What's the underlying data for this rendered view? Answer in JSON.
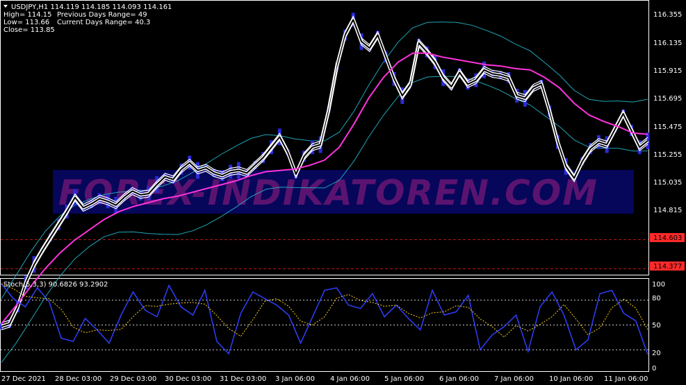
{
  "symbol_line": "USDJPY,H1  114.119 114.185 114.093 114.161",
  "info": {
    "high": "High= 114.15",
    "low": "Low= 113.66",
    "close": "Close= 113.85",
    "prev_range": "Previous Days Range= 49",
    "curr_range": "Current Days Range= 40.3"
  },
  "watermark": "FOREX-INDIKATOREN.COM",
  "price_axis": [
    "116.355",
    "116.135",
    "115.915",
    "115.695",
    "115.475",
    "115.255",
    "115.035",
    "114.815"
  ],
  "level_tags": [
    {
      "label": "114.603",
      "color": "#ff2a2a"
    },
    {
      "label": "114.377",
      "color": "#ff2a2a"
    }
  ],
  "stoch_label": "Stoch(5,3,3) 90.6826 93.2902",
  "stoch_axis": [
    "100",
    "80",
    "50",
    "20",
    "0"
  ],
  "time_axis": [
    "27 Dec 2021",
    "28 Dec 03:00",
    "29 Dec 03:00",
    "30 Dec 03:00",
    "31 Dec 03:00",
    "3 Jan 06:00",
    "4 Jan 06:00",
    "5 Jan 06:00",
    "6 Jan 06:00",
    "7 Jan 06:00",
    "10 Jan 06:00",
    "11 Jan 06:00"
  ],
  "colors": {
    "price_line": "#ffffff",
    "ma": "#ff33dd",
    "bands": "#1fa6b8",
    "stoch_main": "#2f3fff",
    "stoch_signal": "#ffd21a",
    "level": "#c11a1a",
    "watermark_box": "#06065a"
  },
  "chart_data": {
    "type": "line",
    "title": "USDJPY,H1",
    "series": [
      {
        "values": [
          113.93,
          113.95,
          114.08,
          114.27,
          114.41,
          114.52,
          114.62,
          114.72,
          114.82,
          114.93,
          114.85,
          114.88,
          114.92,
          114.9,
          114.87,
          114.93,
          114.98,
          114.95,
          114.96,
          115.03,
          115.09,
          115.07,
          115.15,
          115.2,
          115.14,
          115.16,
          115.12,
          115.1,
          115.13,
          115.14,
          115.12,
          115.18,
          115.24,
          115.32,
          115.4,
          115.28,
          115.11,
          115.25,
          115.32,
          115.34,
          115.61,
          115.95,
          116.19,
          116.31,
          116.14,
          116.09,
          116.19,
          116.02,
          115.85,
          115.72,
          115.81,
          116.13,
          116.06,
          115.98,
          115.86,
          115.79,
          115.9,
          115.81,
          115.84,
          115.92,
          115.89,
          115.88,
          115.86,
          115.72,
          115.7,
          115.78,
          115.81,
          115.6,
          115.36,
          115.17,
          115.08,
          115.21,
          115.31,
          115.36,
          115.34,
          115.46,
          115.58,
          115.45,
          115.32,
          115.37
        ]
      },
      {
        "values": [
          113.95,
          114.09,
          114.24,
          114.38,
          114.5,
          114.6,
          114.68,
          114.76,
          114.82,
          114.86,
          114.89,
          114.92,
          114.94,
          114.97,
          115.0,
          115.03,
          115.06,
          115.1,
          115.13,
          115.14,
          115.15,
          115.18,
          115.22,
          115.32,
          115.5,
          115.7,
          115.86,
          115.98,
          116.05,
          116.05,
          116.02,
          116.0,
          115.98,
          115.96,
          115.95,
          115.93,
          115.92,
          115.86,
          115.78,
          115.66,
          115.57,
          115.52,
          115.48,
          115.43,
          115.42
        ]
      },
      {
        "values": [
          100,
          82,
          72,
          95,
          78,
          34,
          30,
          58,
          44,
          28,
          62,
          90,
          68,
          60,
          98,
          72,
          62,
          92,
          30,
          15,
          64,
          90,
          82,
          74,
          62,
          28,
          60,
          92,
          95,
          74,
          70,
          88,
          60,
          74,
          58,
          44,
          92,
          62,
          66,
          86,
          20,
          38,
          48,
          62,
          18,
          72,
          90,
          62,
          20,
          32,
          88,
          92,
          64,
          55,
          14
        ]
      }
    ],
    "ylim": [
      113.9,
      116.45
    ],
    "stoch_ylim": [
      0,
      100
    ],
    "price_levels": [
      114.603,
      114.377
    ],
    "stoch_levels": [
      80,
      50,
      20
    ]
  }
}
